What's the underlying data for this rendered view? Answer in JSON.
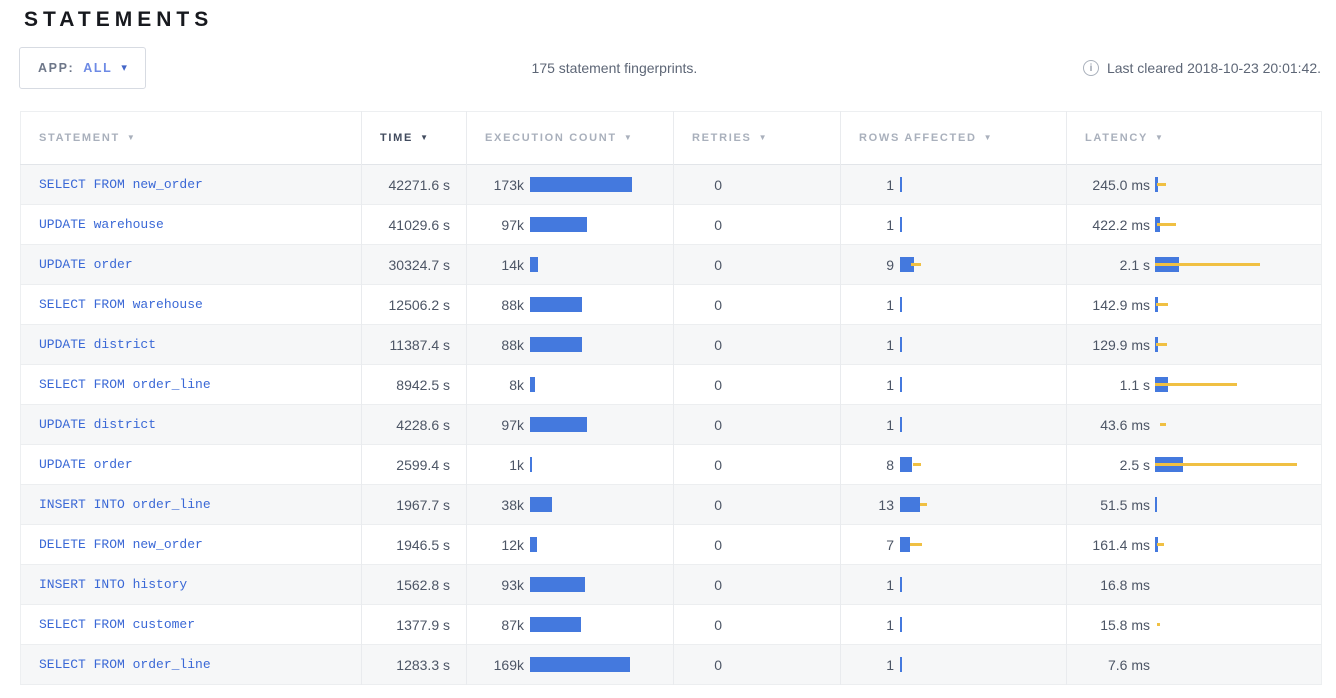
{
  "page": {
    "title": "STATEMENTS"
  },
  "toolbar": {
    "app_filter": {
      "label": "APP:",
      "value": "ALL"
    },
    "summary": "175 statement fingerprints.",
    "last_cleared": "Last cleared 2018-10-23 20:01:42."
  },
  "icons": {
    "sort_desc": "▼",
    "caret_down": "▾",
    "info": "i"
  },
  "colors": {
    "bar_blue": "#4479de",
    "bar_yellow": "#f0c043",
    "link_blue": "#3a68d6"
  },
  "table": {
    "columns": [
      {
        "label": "STATEMENT",
        "sorted": false
      },
      {
        "label": "TIME",
        "sorted": true
      },
      {
        "label": "EXECUTION COUNT",
        "sorted": false
      },
      {
        "label": "RETRIES",
        "sorted": false
      },
      {
        "label": "ROWS AFFECTED",
        "sorted": false
      },
      {
        "label": "LATENCY",
        "sorted": false
      }
    ],
    "rows": [
      {
        "statement": "SELECT FROM new_order",
        "time": "42271.6 s",
        "count": "173k",
        "count_bar": 102,
        "retries": "0",
        "rows_affected": "1",
        "rows_bar": {
          "blue": 2,
          "line": null
        },
        "latency": "245.0 ms",
        "latency_bar": {
          "blue": 3,
          "line": [
            2,
            11
          ]
        }
      },
      {
        "statement": "UPDATE warehouse",
        "time": "41029.6 s",
        "count": "97k",
        "count_bar": 57,
        "retries": "0",
        "rows_affected": "1",
        "rows_bar": {
          "blue": 2,
          "line": null
        },
        "latency": "422.2 ms",
        "latency_bar": {
          "blue": 5,
          "line": [
            2,
            21
          ]
        }
      },
      {
        "statement": "UPDATE order",
        "time": "30324.7 s",
        "count": "14k",
        "count_bar": 8,
        "retries": "0",
        "rows_affected": "9",
        "rows_bar": {
          "blue": 14,
          "line": [
            11,
            21
          ]
        },
        "latency": "2.1 s",
        "latency_bar": {
          "blue": 24,
          "line": [
            0,
            105
          ]
        }
      },
      {
        "statement": "SELECT FROM warehouse",
        "time": "12506.2 s",
        "count": "88k",
        "count_bar": 52,
        "retries": "0",
        "rows_affected": "1",
        "rows_bar": {
          "blue": 2,
          "line": null
        },
        "latency": "142.9 ms",
        "latency_bar": {
          "blue": 3,
          "line": [
            1,
            13
          ]
        }
      },
      {
        "statement": "UPDATE district",
        "time": "11387.4 s",
        "count": "88k",
        "count_bar": 52,
        "retries": "0",
        "rows_affected": "1",
        "rows_bar": {
          "blue": 2,
          "line": null
        },
        "latency": "129.9 ms",
        "latency_bar": {
          "blue": 3,
          "line": [
            1,
            12
          ]
        }
      },
      {
        "statement": "SELECT FROM order_line",
        "time": "8942.5 s",
        "count": "8k",
        "count_bar": 5,
        "retries": "0",
        "rows_affected": "1",
        "rows_bar": {
          "blue": 2,
          "line": null
        },
        "latency": "1.1 s",
        "latency_bar": {
          "blue": 13,
          "line": [
            0,
            82
          ]
        }
      },
      {
        "statement": "UPDATE district",
        "time": "4228.6 s",
        "count": "97k",
        "count_bar": 57,
        "retries": "0",
        "rows_affected": "1",
        "rows_bar": {
          "blue": 2,
          "line": null
        },
        "latency": "43.6 ms",
        "latency_bar": {
          "blue": 0,
          "line": [
            5,
            11
          ]
        }
      },
      {
        "statement": "UPDATE order",
        "time": "2599.4 s",
        "count": "1k",
        "count_bar": 2,
        "retries": "0",
        "rows_affected": "8",
        "rows_bar": {
          "blue": 12,
          "line": [
            13,
            21
          ]
        },
        "latency": "2.5 s",
        "latency_bar": {
          "blue": 28,
          "line": [
            0,
            142
          ]
        }
      },
      {
        "statement": "INSERT INTO order_line",
        "time": "1967.7 s",
        "count": "38k",
        "count_bar": 22,
        "retries": "0",
        "rows_affected": "13",
        "rows_bar": {
          "blue": 20,
          "line": [
            20,
            27
          ]
        },
        "latency": "51.5 ms",
        "latency_bar": {
          "blue": 2,
          "line": null
        }
      },
      {
        "statement": "DELETE FROM new_order",
        "time": "1946.5 s",
        "count": "12k",
        "count_bar": 7,
        "retries": "0",
        "rows_affected": "7",
        "rows_bar": {
          "blue": 10,
          "line": [
            10,
            22
          ]
        },
        "latency": "161.4 ms",
        "latency_bar": {
          "blue": 3,
          "line": [
            2,
            9
          ]
        }
      },
      {
        "statement": "INSERT INTO history",
        "time": "1562.8 s",
        "count": "93k",
        "count_bar": 55,
        "retries": "0",
        "rows_affected": "1",
        "rows_bar": {
          "blue": 2,
          "line": null
        },
        "latency": "16.8 ms",
        "latency_bar": {
          "blue": 0,
          "line": null
        }
      },
      {
        "statement": "SELECT FROM customer",
        "time": "1377.9 s",
        "count": "87k",
        "count_bar": 51,
        "retries": "0",
        "rows_affected": "1",
        "rows_bar": {
          "blue": 2,
          "line": null
        },
        "latency": "15.8 ms",
        "latency_bar": {
          "blue": 0,
          "line": [
            2,
            5
          ]
        }
      },
      {
        "statement": "SELECT FROM order_line",
        "time": "1283.3 s",
        "count": "169k",
        "count_bar": 100,
        "retries": "0",
        "rows_affected": "1",
        "rows_bar": {
          "blue": 2,
          "line": null
        },
        "latency": "7.6 ms",
        "latency_bar": {
          "blue": 0,
          "line": null
        }
      }
    ]
  }
}
